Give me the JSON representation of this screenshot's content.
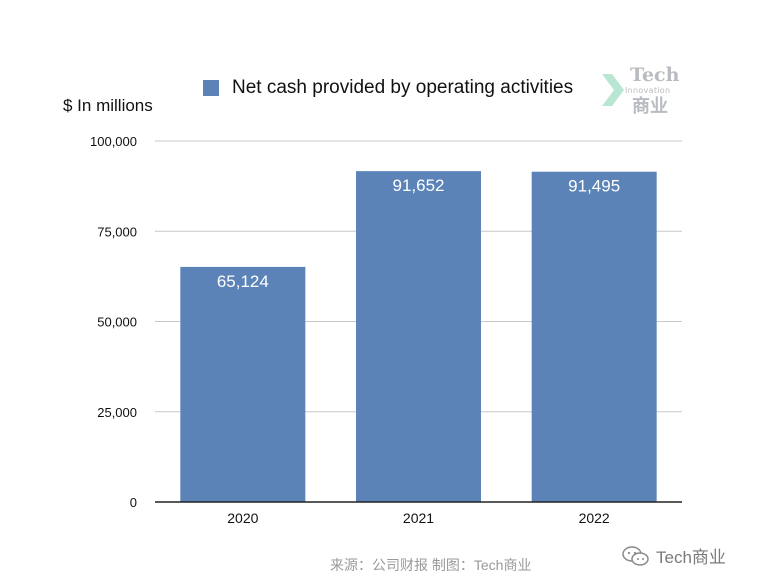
{
  "chart_data": {
    "type": "bar",
    "categories": [
      "2020",
      "2021",
      "2022"
    ],
    "series": [
      {
        "name": "Net cash provided by operating activities",
        "values": [
          65124,
          91652,
          91495
        ]
      }
    ],
    "data_labels": [
      "65,124",
      "91,652",
      "91,495"
    ],
    "ylabel": "$ In millions",
    "xlabel": "",
    "ylim": [
      0,
      100000
    ],
    "yticks": [
      0,
      25000,
      50000,
      75000,
      100000
    ],
    "ytick_labels": [
      "0",
      "25,000",
      "50,000",
      "75,000",
      "100,000"
    ],
    "grid": true,
    "legend_position": "top-center",
    "bar_color": "#5b83b7"
  },
  "watermark": {
    "logo_text": "Tech",
    "logo_subtext": "Innovation",
    "logo_cn": "商业"
  },
  "source_text": "来源：公司财报 制图：Tech商业",
  "wechat_handle": "Tech商业"
}
